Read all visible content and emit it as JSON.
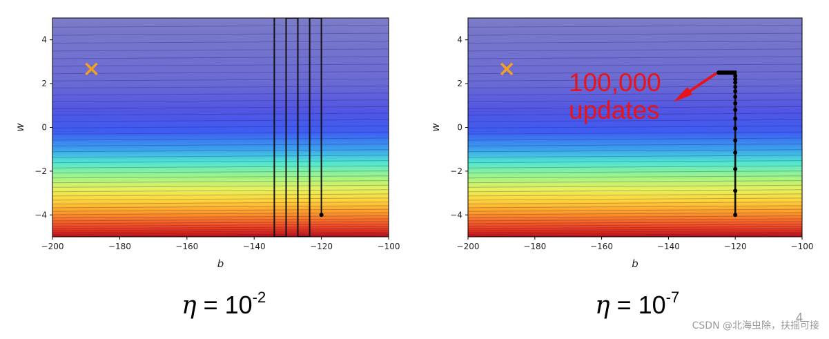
{
  "chart_data": [
    {
      "type": "contour",
      "xlabel": "b",
      "ylabel": "w",
      "xlim": [
        -200,
        -100
      ],
      "ylim": [
        -5,
        5
      ],
      "xticks": [
        -200,
        -180,
        -160,
        -140,
        -120,
        -100
      ],
      "yticks": [
        -4,
        -2,
        0,
        2,
        4
      ],
      "xtick_labels": [
        "−200",
        "−180",
        "−160",
        "−140",
        "−120",
        "−100"
      ],
      "ytick_labels": [
        "−4",
        "−2",
        "0",
        "2",
        "4"
      ],
      "minimum": {
        "b": -188.4,
        "w": 2.67,
        "marker": "x",
        "color": "#f4a020"
      },
      "path": {
        "x": [
          -120,
          -120,
          -123.5,
          -123.5,
          -127,
          -127,
          -130.5,
          -130.5,
          -134,
          -134
        ],
        "y": [
          -4,
          5,
          5,
          -5,
          -5,
          5,
          5,
          -5,
          -5,
          5
        ]
      },
      "path_points": [
        {
          "b": -120,
          "w": -4
        }
      ],
      "caption_symbol": "η",
      "caption_eq": " = 10",
      "caption_exp": "-2"
    },
    {
      "type": "contour",
      "xlabel": "b",
      "ylabel": "w",
      "xlim": [
        -200,
        -100
      ],
      "ylim": [
        -5,
        5
      ],
      "xticks": [
        -200,
        -180,
        -160,
        -140,
        -120,
        -100
      ],
      "yticks": [
        -4,
        -2,
        0,
        2,
        4
      ],
      "xtick_labels": [
        "−200",
        "−180",
        "−160",
        "−140",
        "−120",
        "−100"
      ],
      "ytick_labels": [
        "−4",
        "−2",
        "0",
        "2",
        "4"
      ],
      "minimum": {
        "b": -188.4,
        "w": 2.67,
        "marker": "x",
        "color": "#f4a020"
      },
      "path": {
        "x": [
          -120,
          -120,
          -120.5,
          -121.5,
          -123,
          -125
        ],
        "y": [
          -4,
          2.3,
          2.5,
          2.5,
          2.5,
          2.5
        ]
      },
      "path_points": [
        {
          "b": -120,
          "w": -4
        },
        {
          "b": -120,
          "w": -2.9
        },
        {
          "b": -120,
          "w": -1.9
        },
        {
          "b": -120,
          "w": -1.15
        },
        {
          "b": -120,
          "w": -0.6
        },
        {
          "b": -120,
          "w": -0.05
        },
        {
          "b": -120,
          "w": 0.4
        },
        {
          "b": -120,
          "w": 0.8
        },
        {
          "b": -120,
          "w": 1.1
        },
        {
          "b": -120,
          "w": 1.4
        },
        {
          "b": -120,
          "w": 1.65
        },
        {
          "b": -120,
          "w": 1.85
        },
        {
          "b": -120,
          "w": 2.05
        },
        {
          "b": -120,
          "w": 2.2
        },
        {
          "b": -120,
          "w": 2.35
        },
        {
          "b": -120.6,
          "w": 2.5
        },
        {
          "b": -121.4,
          "w": 2.5
        },
        {
          "b": -122.3,
          "w": 2.5
        },
        {
          "b": -123.2,
          "w": 2.5
        },
        {
          "b": -124.1,
          "w": 2.5
        },
        {
          "b": -125,
          "w": 2.5
        }
      ],
      "annotations": [
        "100,000",
        "updates"
      ],
      "caption_symbol": "η",
      "caption_eq": " = 10",
      "caption_exp": "-7"
    }
  ],
  "watermark": "CSDN @北海虫除，扶摇可接",
  "page_number": "4",
  "colors": {
    "annotation": "#e8141b",
    "arrow": "#e8141b",
    "marker": "#f4a020",
    "path": "#000000"
  }
}
